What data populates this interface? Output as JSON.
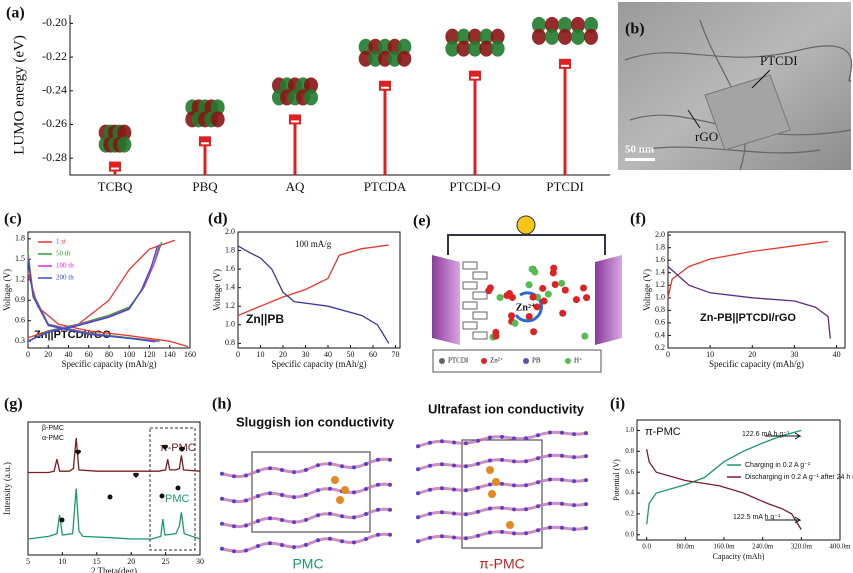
{
  "chart_data": [
    {
      "type": "stem",
      "label": "(a)",
      "ylabel": "LUMO energy (eV)",
      "categories": [
        "TCBQ",
        "PBQ",
        "AQ",
        "PTCDA",
        "PTCDI-O",
        "PTCDI"
      ],
      "values": [
        -0.285,
        -0.27,
        -0.257,
        -0.237,
        -0.231,
        -0.224
      ],
      "color": "#e02020",
      "ylim": [
        -0.29,
        -0.195
      ],
      "yticks": [
        {
          "value": -0.2,
          "label": "-0.20"
        },
        -0.22,
        -0.24,
        -0.26,
        -0.28
      ]
    },
    {
      "type": "line",
      "label": "(c)",
      "xlabel": "Specific capacity (mAh/g)",
      "ylabel": "Voltage (V)",
      "annotations": [
        "Zn||PTCDI/rGO"
      ],
      "legend": "upper left",
      "xlim": [
        0,
        160
      ],
      "xticks": [
        0,
        20,
        40,
        60,
        80,
        100,
        120,
        140,
        160
      ],
      "ylim": [
        0.2,
        1.9
      ],
      "yticks": [
        0.3,
        0.6,
        0.9,
        1.2,
        1.5,
        1.8
      ],
      "series": [
        {
          "name": "1 st",
          "color": "#e8362a",
          "x": [
            0,
            20,
            50,
            80,
            100,
            120,
            145,
            null,
            0,
            10,
            30,
            60,
            100,
            140,
            158
          ],
          "values": [
            0.35,
            0.45,
            0.55,
            0.9,
            1.35,
            1.65,
            1.78,
            null,
            1.3,
            0.8,
            0.55,
            0.45,
            0.38,
            0.3,
            0.22
          ]
        },
        {
          "name": "50 th",
          "color": "#2ca02c",
          "x": [
            0,
            20,
            50,
            80,
            100,
            115,
            125,
            132,
            null,
            0,
            5,
            20,
            60,
            100,
            130
          ],
          "values": [
            0.3,
            0.45,
            0.55,
            0.68,
            0.8,
            1.1,
            1.45,
            1.75,
            null,
            1.6,
            1.0,
            0.55,
            0.42,
            0.35,
            0.3
          ]
        },
        {
          "name": "100 th",
          "color": "#d62ad6",
          "x": [
            0,
            20,
            50,
            80,
            100,
            114,
            124,
            130,
            null,
            0,
            5,
            20,
            60,
            100,
            128
          ],
          "values": [
            0.3,
            0.44,
            0.54,
            0.66,
            0.78,
            1.08,
            1.42,
            1.72,
            null,
            1.55,
            0.98,
            0.54,
            0.41,
            0.34,
            0.3
          ]
        },
        {
          "name": "200 th",
          "color": "#3050c8",
          "x": [
            0,
            20,
            50,
            80,
            100,
            112,
            122,
            128,
            null,
            0,
            5,
            20,
            60,
            100,
            126
          ],
          "values": [
            0.3,
            0.43,
            0.53,
            0.65,
            0.77,
            1.05,
            1.4,
            1.7,
            null,
            1.5,
            0.95,
            0.53,
            0.4,
            0.34,
            0.29
          ]
        }
      ]
    },
    {
      "type": "line",
      "label": "(d)",
      "xlabel": "Specific capacity (mAh/g)",
      "ylabel": "Voltage (V)",
      "annotations": [
        "100 mA/g",
        "Zn||PB"
      ],
      "xlim": [
        0,
        72
      ],
      "xticks": [
        0,
        10,
        20,
        30,
        40,
        50,
        60,
        70
      ],
      "ylim": [
        0.75,
        2.0
      ],
      "yticks": [
        0.8,
        {
          "value": 1.0,
          "label": "1.0"
        },
        1.2,
        1.4,
        1.6,
        1.8,
        {
          "value": 2.0,
          "label": "2.0"
        }
      ],
      "series": [
        {
          "color": "#e8362a",
          "x": [
            0,
            10,
            20,
            30,
            40,
            45,
            55,
            67
          ],
          "values": [
            1.1,
            1.2,
            1.3,
            1.38,
            1.5,
            1.75,
            1.82,
            1.86
          ]
        },
        {
          "color": "#3a3a9a",
          "x": [
            0,
            5,
            10,
            15,
            20,
            25,
            40,
            55,
            62,
            67
          ],
          "values": [
            1.85,
            1.78,
            1.72,
            1.6,
            1.35,
            1.25,
            1.2,
            1.1,
            1.0,
            0.8
          ]
        }
      ]
    },
    {
      "type": "line",
      "label": "(f)",
      "xlabel": "Specific capacity (mAh/g)",
      "ylabel": "Voltage (V)",
      "annotations": [
        "Zn-PB||PTCDI/rGO"
      ],
      "xlim": [
        0,
        42
      ],
      "xticks": [
        0,
        10,
        20,
        30,
        40
      ],
      "ylim": [
        0.2,
        2.05
      ],
      "yticks": [
        0.2,
        0.4,
        0.6,
        0.8,
        {
          "value": 1.0,
          "label": "1.0"
        },
        1.2,
        1.4,
        1.6,
        1.8,
        {
          "value": 2.0,
          "label": "2.0"
        }
      ],
      "series": [
        {
          "color": "#e8362a",
          "x": [
            0,
            1,
            5,
            10,
            20,
            30,
            38
          ],
          "values": [
            1.0,
            1.3,
            1.5,
            1.62,
            1.74,
            1.83,
            1.9
          ]
        },
        {
          "color": "#5a2a8a",
          "x": [
            0,
            2,
            5,
            10,
            20,
            30,
            35,
            38,
            38.5
          ],
          "values": [
            1.5,
            1.38,
            1.2,
            1.08,
            1.0,
            0.95,
            0.85,
            0.7,
            0.35
          ]
        }
      ]
    },
    {
      "type": "line",
      "label": "(g)",
      "xlabel": "2 Theta(deg)",
      "ylabel": "Intensity (a.u.)",
      "annotations": [
        "β-PMC",
        "α-PMC"
      ],
      "xlim": [
        5,
        30
      ],
      "xticks": [
        5,
        10,
        15,
        20,
        25,
        30
      ],
      "ylim": [
        0,
        1
      ],
      "series": [
        {
          "name": "π-PMC",
          "color": "#7a1f1f",
          "x": [
            5,
            8,
            8.8,
            9.2,
            9.6,
            11,
            11.6,
            12,
            12.4,
            15,
            20,
            24,
            25,
            25.3,
            25.6,
            26.5,
            27,
            27.3,
            27.6,
            30
          ],
          "values": [
            0.62,
            0.62,
            0.63,
            0.72,
            0.63,
            0.63,
            0.65,
            0.88,
            0.64,
            0.63,
            0.63,
            0.63,
            0.64,
            0.72,
            0.64,
            0.64,
            0.65,
            0.75,
            0.64,
            0.63
          ]
        },
        {
          "name": "PMC",
          "color": "#1a9a6a",
          "x": [
            5,
            8,
            9.2,
            9.6,
            10,
            11.5,
            12,
            12.4,
            13,
            17,
            20,
            23,
            24.3,
            24.6,
            24.9,
            26.5,
            27,
            27.3,
            27.7,
            30
          ],
          "values": [
            0.12,
            0.14,
            0.16,
            0.3,
            0.15,
            0.16,
            0.5,
            0.18,
            0.14,
            0.13,
            0.12,
            0.12,
            0.14,
            0.27,
            0.15,
            0.16,
            0.22,
            0.32,
            0.16,
            0.12
          ]
        }
      ]
    },
    {
      "type": "line",
      "label": "(i)",
      "xlabel": "Capacity (mAh)",
      "ylabel": "Potential (V)",
      "annotations": [
        "π-PMC",
        "122.6 mA h g⁻¹",
        "122.5 mA h g⁻¹"
      ],
      "legend": "center right",
      "xlim": [
        -20,
        400
      ],
      "xticks": [
        {
          "value": 0,
          "label": "0.0"
        },
        {
          "value": 80,
          "label": "80.0m"
        },
        {
          "value": 160,
          "label": "160.0m"
        },
        {
          "value": 240,
          "label": "240.0m"
        },
        {
          "value": 320,
          "label": "320.0m"
        },
        {
          "value": 400,
          "label": "400.0m"
        }
      ],
      "ylim": [
        -0.05,
        1.1
      ],
      "yticks": [
        {
          "value": 0,
          "label": "0.0"
        },
        0.2,
        0.4,
        0.6,
        0.8,
        {
          "value": 1,
          "label": "1.0"
        }
      ],
      "series": [
        {
          "name": "Charging in 0.2 A g⁻¹",
          "color": "#1a9a6a",
          "x": [
            0,
            5,
            20,
            80,
            120,
            160,
            200,
            240,
            280,
            320
          ],
          "values": [
            0.1,
            0.3,
            0.4,
            0.48,
            0.55,
            0.7,
            0.8,
            0.88,
            0.95,
            1.0
          ]
        },
        {
          "name": "Discharging in 0.2 A g⁻¹ after 24 h rest",
          "color": "#7a1f2f",
          "x": [
            0,
            5,
            20,
            80,
            150,
            200,
            250,
            280,
            300,
            320
          ],
          "values": [
            0.82,
            0.7,
            0.6,
            0.52,
            0.47,
            0.4,
            0.3,
            0.25,
            0.2,
            0.05
          ]
        }
      ]
    }
  ],
  "images": {
    "b": {
      "label": "(b)",
      "texts": [
        "PTCDI",
        "rGO",
        "50 nm"
      ]
    },
    "e": {
      "label": "(e)",
      "center": "Zn²⁺",
      "legend": [
        "PTCDI",
        "Zn²⁺",
        "PB",
        "H⁺"
      ]
    },
    "h": {
      "label": "(h)",
      "titles": [
        "Sluggish ion conductivity",
        "Ultrafast ion conductivity"
      ],
      "captions": [
        "PMC",
        "π-PMC"
      ]
    }
  }
}
